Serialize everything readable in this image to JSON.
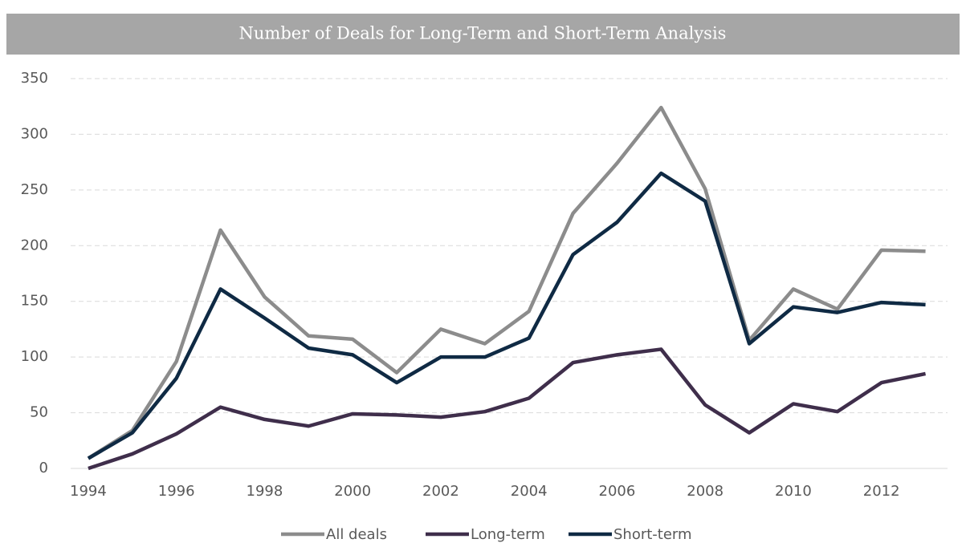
{
  "chart_data": {
    "type": "line",
    "title": "Number of Deals for Long-Term and Short-Term Analysis",
    "x": [
      1994,
      1995,
      1996,
      1997,
      1998,
      1999,
      2000,
      2001,
      2002,
      2003,
      2004,
      2005,
      2006,
      2007,
      2008,
      2009,
      2010,
      2011,
      2012,
      2013
    ],
    "series": [
      {
        "name": "All deals",
        "color": "#8c8c8c",
        "values": [
          9,
          34,
          96,
          214,
          154,
          119,
          116,
          86,
          125,
          112,
          141,
          229,
          274,
          324,
          251,
          115,
          161,
          143,
          196,
          195
        ]
      },
      {
        "name": "Long-term",
        "color": "#3f2e4b",
        "values": [
          0,
          13,
          31,
          55,
          44,
          38,
          49,
          48,
          46,
          51,
          63,
          95,
          102,
          107,
          57,
          32,
          58,
          51,
          77,
          85
        ]
      },
      {
        "name": "Short-term",
        "color": "#0f2a44",
        "values": [
          9,
          32,
          81,
          161,
          135,
          108,
          102,
          77,
          100,
          100,
          117,
          192,
          221,
          265,
          240,
          112,
          145,
          140,
          149,
          147
        ]
      }
    ],
    "xlim": [
      1993.6,
      2013.5
    ],
    "xticks": [
      1994,
      1996,
      1998,
      2000,
      2002,
      2004,
      2006,
      2008,
      2010,
      2012
    ],
    "ylim": [
      0,
      350
    ],
    "yticks": [
      0,
      50,
      100,
      150,
      200,
      250,
      300,
      350
    ],
    "grid": true,
    "legend": "bottom"
  }
}
